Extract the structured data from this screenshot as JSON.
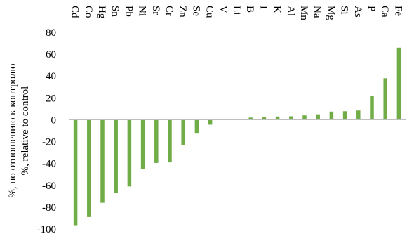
{
  "chart_data": {
    "type": "bar",
    "categories": [
      "Cd",
      "Co",
      "Hg",
      "Sn",
      "Pb",
      "Ni",
      "Sr",
      "Cr",
      "Zn",
      "Se",
      "Cu",
      "V",
      "Li",
      "B",
      "I",
      "K",
      "Al",
      "Mn",
      "Na",
      "Mg",
      "Si",
      "As",
      "P",
      "Ca",
      "Fe"
    ],
    "values": [
      -96.5,
      -89,
      -76,
      -67,
      -61,
      -45,
      -39.5,
      -39,
      -23,
      -12,
      -4.5,
      0,
      0.5,
      2,
      2.2,
      3,
      3.2,
      4,
      5,
      7.5,
      7.8,
      8.5,
      22,
      38,
      66
    ],
    "ylim": [
      -100,
      80
    ],
    "yticks": [
      -100,
      -80,
      -60,
      -40,
      -20,
      0,
      20,
      40,
      60,
      80
    ],
    "ylabel_lines": [
      "%, по отношению к контролю",
      "%, relative to control"
    ],
    "bar_color": "#70ad47",
    "axis_color": "#000000",
    "category_label_position": "top",
    "grid": false
  }
}
